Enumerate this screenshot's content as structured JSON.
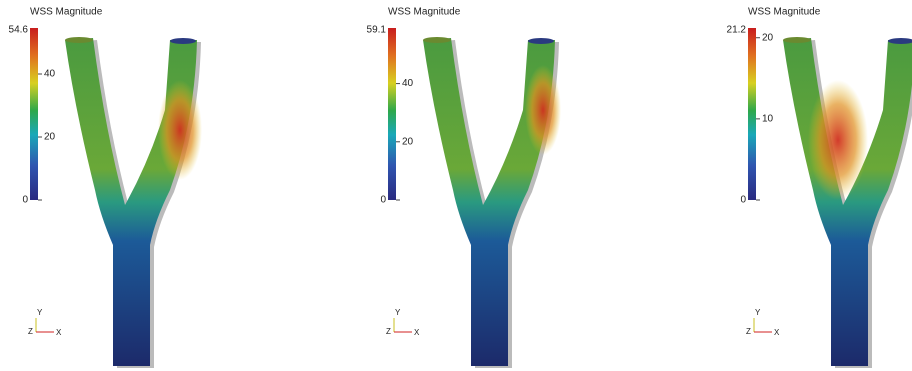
{
  "panels": [
    {
      "title": "WSS Magnitude",
      "max": 54.6,
      "ticks": [
        0,
        20,
        40
      ],
      "axes": {
        "y": "Y",
        "z": "Z",
        "x": "X"
      }
    },
    {
      "title": "WSS Magnitude",
      "max": 59.1,
      "ticks": [
        0,
        20,
        40
      ],
      "axes": {
        "y": "Y",
        "z": "Z",
        "x": "X"
      }
    },
    {
      "title": "WSS Magnitude",
      "max": 21.2,
      "ticks": [
        0,
        10,
        20
      ],
      "axes": {
        "y": "Y",
        "z": "Z",
        "x": "X"
      }
    }
  ]
}
